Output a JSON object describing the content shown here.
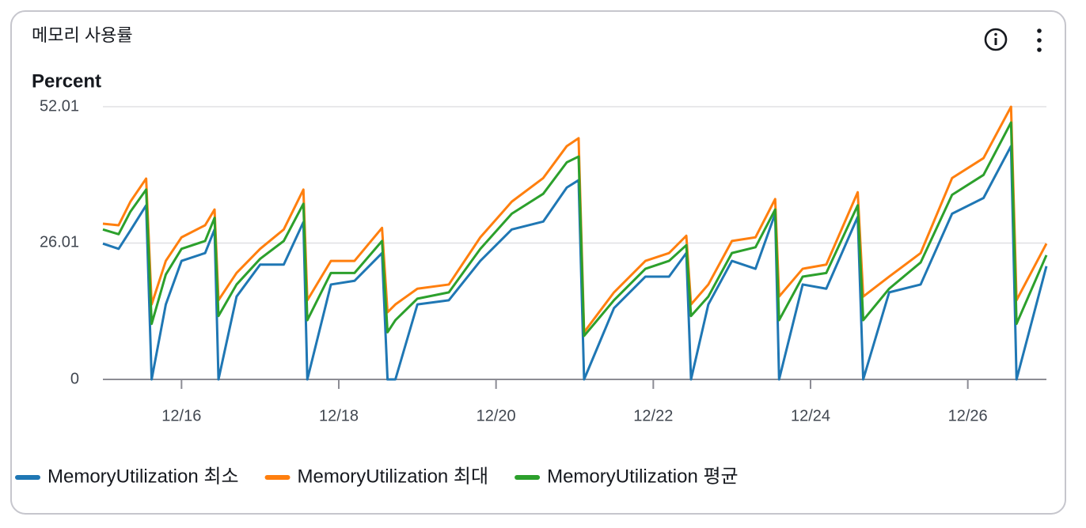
{
  "chart_data": {
    "type": "line",
    "title": "메모리 사용률",
    "ylabel": "Percent",
    "x": [
      15.0,
      15.2,
      15.35,
      15.55,
      15.62,
      15.8,
      16.0,
      16.3,
      16.42,
      16.47,
      16.7,
      17.0,
      17.3,
      17.55,
      17.6,
      17.9,
      18.2,
      18.55,
      18.62,
      18.72,
      19.0,
      19.4,
      19.8,
      20.2,
      20.6,
      20.9,
      21.05,
      21.12,
      21.5,
      21.9,
      22.2,
      22.42,
      22.48,
      22.7,
      23.0,
      23.3,
      23.55,
      23.6,
      23.9,
      24.2,
      24.6,
      24.67,
      25.0,
      25.4,
      25.8,
      26.2,
      26.55,
      26.62,
      27.0
    ],
    "series": [
      {
        "name": "MemoryUtilization 최소",
        "color": "#1f77b4",
        "values": [
          25.9,
          24.9,
          28.4,
          33.2,
          0,
          14.3,
          22.6,
          24.1,
          28.6,
          0,
          15.8,
          21.9,
          21.9,
          30.0,
          0,
          18.1,
          18.8,
          24.1,
          0,
          0,
          14.3,
          15.1,
          22.6,
          28.6,
          30.1,
          36.6,
          38.0,
          0,
          13.6,
          19.6,
          19.6,
          24.1,
          0,
          14.3,
          22.6,
          21.1,
          31.6,
          0,
          18.1,
          17.3,
          31.0,
          0,
          16.6,
          18.1,
          31.6,
          34.6,
          44.5,
          0,
          21.6
        ]
      },
      {
        "name": "MemoryUtilization 최대",
        "color": "#ff7f0e",
        "values": [
          29.7,
          29.4,
          33.9,
          38.3,
          14.3,
          22.6,
          27.1,
          29.4,
          32.4,
          15.1,
          20.3,
          24.9,
          28.6,
          36.2,
          15.1,
          22.6,
          22.6,
          28.9,
          12.8,
          14.3,
          17.3,
          18.1,
          27.1,
          33.9,
          38.4,
          44.5,
          46.0,
          9.0,
          16.6,
          22.6,
          24.1,
          27.4,
          14.3,
          18.1,
          26.4,
          27.1,
          34.4,
          15.8,
          21.1,
          21.9,
          35.7,
          15.8,
          19.6,
          24.1,
          38.4,
          42.2,
          52.0,
          15.1,
          25.9
        ]
      },
      {
        "name": "MemoryUtilization 평균",
        "color": "#2ca02c",
        "values": [
          28.6,
          27.7,
          32.0,
          36.2,
          10.6,
          20.0,
          24.9,
          26.4,
          30.8,
          12.1,
          18.1,
          23.0,
          26.4,
          33.5,
          11.3,
          20.3,
          20.3,
          26.4,
          9.0,
          11.3,
          15.4,
          16.6,
          24.9,
          31.6,
          35.4,
          41.4,
          42.5,
          8.3,
          15.1,
          21.1,
          22.6,
          25.6,
          12.1,
          15.8,
          24.1,
          25.2,
          32.4,
          11.3,
          19.6,
          20.3,
          33.2,
          11.3,
          17.3,
          22.3,
          35.2,
          39.0,
          49.0,
          10.6,
          23.7
        ]
      }
    ],
    "xlim": [
      15,
      27
    ],
    "xticks": [
      {
        "value": 16,
        "label": "12/16"
      },
      {
        "value": 18,
        "label": "12/18"
      },
      {
        "value": 20,
        "label": "12/20"
      },
      {
        "value": 22,
        "label": "12/22"
      },
      {
        "value": 24,
        "label": "12/24"
      },
      {
        "value": 26,
        "label": "12/26"
      }
    ],
    "ylim": [
      0,
      52.01
    ],
    "yticks": [
      0,
      26.01,
      52.01
    ],
    "grid": true,
    "legend": "bottom"
  }
}
